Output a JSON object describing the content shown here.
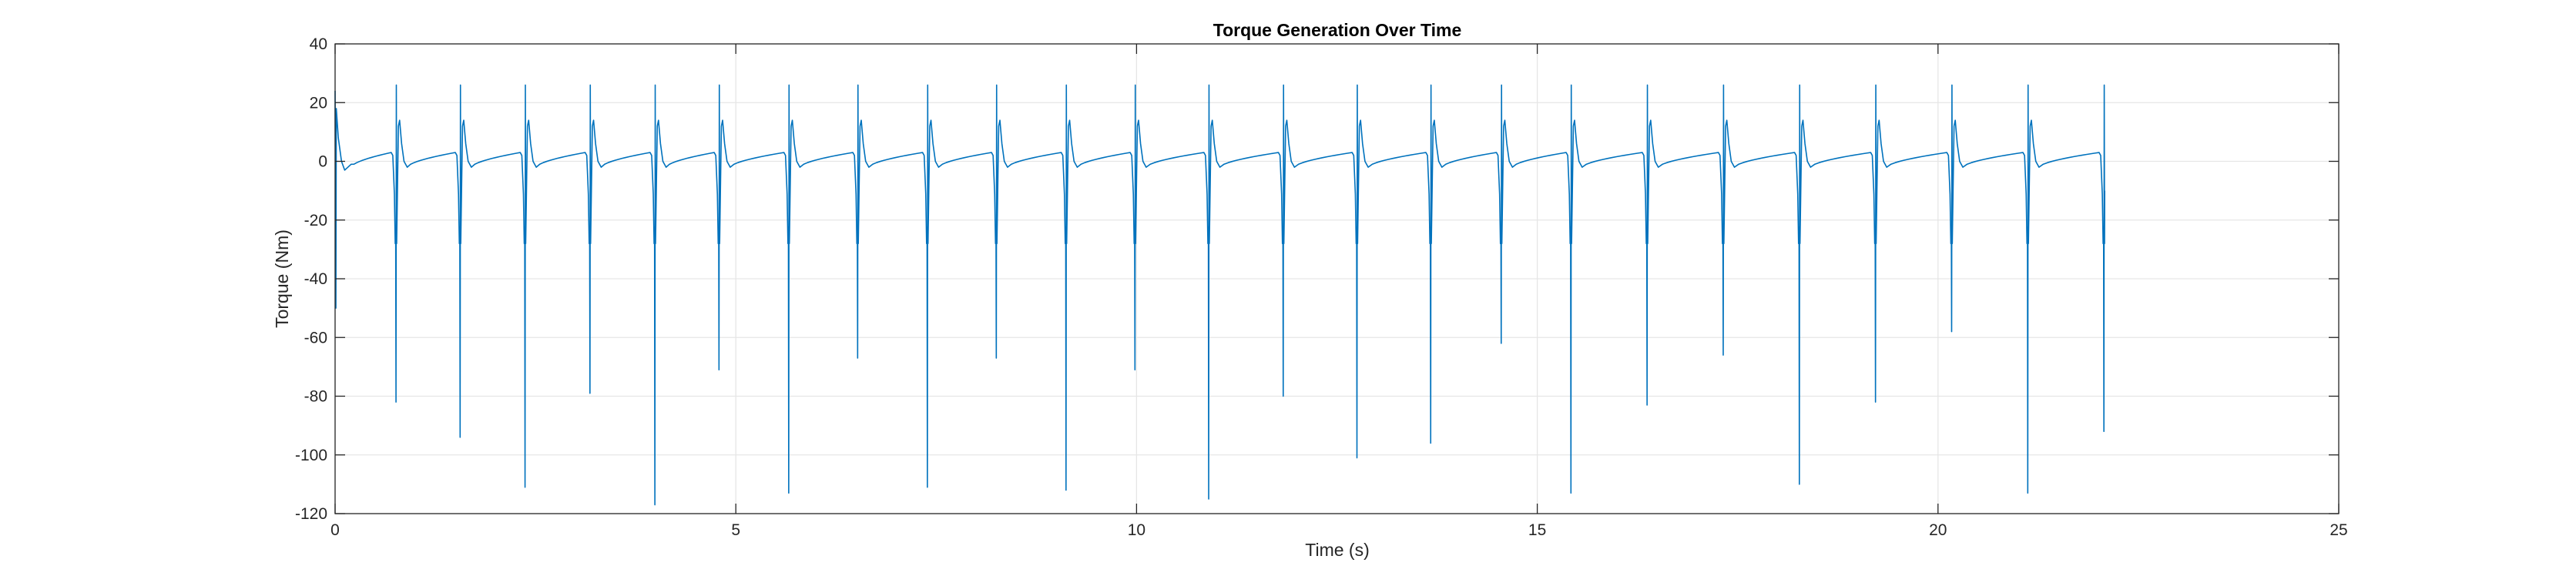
{
  "chart_data": {
    "type": "line",
    "title": "Torque Generation Over Time",
    "xlabel": "Time (s)",
    "ylabel": "Torque (Nm)",
    "xlim": [
      0,
      25
    ],
    "ylim": [
      -120,
      40
    ],
    "xticks": [
      0,
      5,
      10,
      15,
      20,
      25
    ],
    "yticks": [
      -120,
      -100,
      -80,
      -60,
      -40,
      -20,
      0,
      20,
      40
    ],
    "grid": true,
    "legend": "none",
    "colors": {
      "series": "#0072BD",
      "grid": "#e6e6e6",
      "axis": "#262626"
    },
    "series": [
      {
        "name": "",
        "spikes": [
          {
            "t": 0.76,
            "min": -82,
            "max": 26
          },
          {
            "t": 1.56,
            "min": -94,
            "max": 26
          },
          {
            "t": 2.37,
            "min": -111,
            "max": 26
          },
          {
            "t": 3.18,
            "min": -79,
            "max": 26
          },
          {
            "t": 3.99,
            "min": -117,
            "max": 26
          },
          {
            "t": 4.79,
            "min": -71,
            "max": 26
          },
          {
            "t": 5.66,
            "min": -113,
            "max": 26
          },
          {
            "t": 6.52,
            "min": -67,
            "max": 26
          },
          {
            "t": 7.39,
            "min": -111,
            "max": 26
          },
          {
            "t": 8.25,
            "min": -67,
            "max": 26
          },
          {
            "t": 9.12,
            "min": -112,
            "max": 26
          },
          {
            "t": 9.98,
            "min": -71,
            "max": 26
          },
          {
            "t": 10.9,
            "min": -115,
            "max": 26
          },
          {
            "t": 11.83,
            "min": -80,
            "max": 26
          },
          {
            "t": 12.75,
            "min": -101,
            "max": 26
          },
          {
            "t": 13.67,
            "min": -96,
            "max": 26
          },
          {
            "t": 14.55,
            "min": -62,
            "max": 26
          },
          {
            "t": 15.42,
            "min": -113,
            "max": 26
          },
          {
            "t": 16.37,
            "min": -83,
            "max": 26
          },
          {
            "t": 17.32,
            "min": -66,
            "max": 26
          },
          {
            "t": 18.27,
            "min": -110,
            "max": 26
          },
          {
            "t": 19.22,
            "min": -82,
            "max": 26
          },
          {
            "t": 20.17,
            "min": -58,
            "max": 26
          },
          {
            "t": 21.12,
            "min": -113,
            "max": 26
          },
          {
            "t": 22.07,
            "min": -92,
            "max": 26
          }
        ],
        "baseline_between_spikes": {
          "min": -2,
          "max": 3
        },
        "overshoot_after_spike": 14,
        "dip_before_spike": -28,
        "start": {
          "t": 0,
          "value": 24
        },
        "end_t": 22.07
      }
    ]
  }
}
